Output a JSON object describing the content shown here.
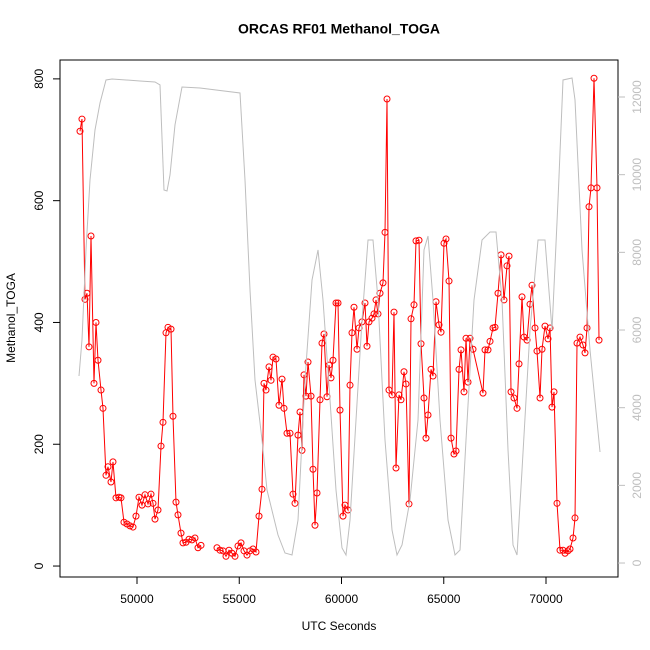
{
  "chart_data": {
    "type": "line",
    "title": "ORCAS RF01 Methanol_TOGA",
    "xlabel": "UTC Seconds",
    "ylabel": "Methanol_TOGA",
    "xlim": [
      46235,
      73520
    ],
    "xticks": [
      50000,
      55000,
      60000,
      65000,
      70000
    ],
    "ylim": [
      -18,
      831
    ],
    "yticks": [
      0,
      200,
      400,
      600,
      800
    ],
    "y2lim": [
      -360,
      12953
    ],
    "y2ticks": [
      0,
      2000,
      4000,
      6000,
      8000,
      10000,
      12000
    ],
    "series": [
      {
        "color": "#ff0000",
        "marker": "circle",
        "x": [
          47213,
          47310,
          47457,
          47555,
          47653,
          47751,
          47897,
          47995,
          48093,
          48240,
          48337,
          48484,
          48582,
          48729,
          48826,
          48973,
          49120,
          49218,
          49364,
          49511,
          49658,
          49804,
          49951,
          50098,
          50244,
          50391,
          50538,
          50685,
          50782,
          50880,
          51027,
          51174,
          51271,
          51418,
          51516,
          51663,
          51760,
          51907,
          52005,
          52152,
          52249,
          52396,
          52543,
          52689,
          52836,
          52983,
          53130,
          53500,
          53912,
          54059,
          54205,
          54352,
          54499,
          54645,
          54792,
          54939,
          55086,
          55232,
          55379,
          55526,
          55672,
          55819,
          55966,
          56112,
          56210,
          56308,
          56455,
          56553,
          56650,
          56797,
          56944,
          57091,
          57188,
          57335,
          57482,
          57628,
          57726,
          57873,
          57971,
          58068,
          58166,
          58264,
          58362,
          58509,
          58606,
          58704,
          58802,
          58949,
          59046,
          59144,
          59291,
          59389,
          59487,
          59584,
          59731,
          59829,
          59927,
          60073,
          60171,
          60318,
          60416,
          60513,
          60611,
          60758,
          60856,
          61002,
          61149,
          61247,
          61345,
          61491,
          61589,
          61687,
          61785,
          61883,
          62029,
          62127,
          62225,
          62323,
          62469,
          62567,
          62665,
          62812,
          62910,
          63056,
          63154,
          63301,
          63399,
          63545,
          63643,
          63790,
          63888,
          64034,
          64132,
          64230,
          64377,
          64474,
          64621,
          64768,
          64866,
          65012,
          65110,
          65257,
          65355,
          65501,
          65599,
          65746,
          65844,
          65990,
          66088,
          66186,
          66284,
          66430,
          66919,
          67017,
          67164,
          67262,
          67408,
          67506,
          67653,
          67800,
          67946,
          68093,
          68191,
          68289,
          68435,
          68582,
          68680,
          68826,
          68924,
          69071,
          69218,
          69315,
          69462,
          69560,
          69707,
          69804,
          69951,
          70098,
          70196,
          70293,
          70391,
          70538,
          70685,
          70831,
          70929,
          71076,
          71174,
          71320,
          71418,
          71516,
          71663,
          71809,
          71907,
          72005,
          72103,
          72200,
          72347,
          72494,
          72592
        ],
        "values": [
          714,
          734,
          438,
          448,
          360,
          542,
          300,
          400,
          338,
          289,
          259,
          149,
          163,
          138,
          171,
          112,
          113,
          112,
          72,
          69,
          66,
          64,
          82,
          113,
          100,
          117,
          102,
          118,
          103,
          77,
          92,
          197,
          236,
          383,
          392,
          389,
          246,
          105,
          84,
          54,
          38,
          39,
          44,
          43,
          46,
          30,
          34,
          null,
          30,
          26,
          25,
          16,
          26,
          21,
          16,
          33,
          38,
          25,
          18,
          25,
          28,
          23,
          82,
          126,
          300,
          289,
          327,
          305,
          343,
          340,
          264,
          307,
          259,
          218,
          218,
          118,
          103,
          215,
          253,
          190,
          314,
          279,
          335,
          279,
          159,
          67,
          120,
          273,
          366,
          381,
          278,
          330,
          309,
          338,
          432,
          432,
          256,
          82,
          100,
          92,
          297,
          383,
          425,
          356,
          391,
          401,
          432,
          361,
          401,
          407,
          414,
          437,
          414,
          448,
          465,
          548,
          767,
          289,
          281,
          417,
          161,
          281,
          273,
          319,
          299,
          102,
          406,
          429,
          534,
          535,
          365,
          276,
          210,
          248,
          323,
          312,
          434,
          396,
          384,
          530,
          537,
          468,
          210,
          184,
          189,
          323,
          355,
          286,
          374,
          302,
          374,
          356,
          284,
          355,
          355,
          369,
          391,
          392,
          448,
          511,
          437,
          493,
          509,
          286,
          276,
          259,
          332,
          442,
          376,
          371,
          430,
          461,
          391,
          353,
          276,
          356,
          394,
          373,
          391,
          261,
          286,
          103,
          26,
          26,
          21,
          25,
          28,
          46,
          79,
          366,
          376,
          363,
          350,
          391,
          590,
          621,
          801,
          621,
          371
        ]
      },
      {
        "color": "#bebebe",
        "axis": "y2",
        "x": [
          47164,
          47310,
          47506,
          47702,
          47946,
          48191,
          48484,
          48778,
          50147,
          50880,
          51125,
          51320,
          51467,
          51614,
          51858,
          52200,
          53081,
          55037,
          55281,
          55526,
          55770,
          56113,
          56357,
          56895,
          57237,
          57580,
          57873,
          58215,
          58558,
          58851,
          59095,
          59438,
          59731,
          60025,
          60220,
          60416,
          60709,
          61003,
          61296,
          61540,
          61785,
          62127,
          62470,
          62714,
          62959,
          63350,
          63741,
          64034,
          64230,
          64474,
          64817,
          65208,
          65550,
          65795,
          66088,
          66479,
          66871,
          67262,
          67555,
          67849,
          68142,
          68386,
          68582,
          68827,
          69218,
          69609,
          69951,
          70294,
          70587,
          70831,
          71272,
          71418,
          71761,
          72152,
          72641
        ],
        "values": [
          4816,
          5743,
          8061,
          9863,
          11151,
          11846,
          12439,
          12464,
          12413,
          12387,
          12310,
          9606,
          9580,
          9992,
          11280,
          12258,
          12233,
          12104,
          9863,
          7031,
          4713,
          3168,
          1880,
          721,
          258,
          206,
          1107,
          4713,
          7288,
          8061,
          6773,
          4198,
          1880,
          386,
          206,
          1107,
          3683,
          6258,
          8318,
          8318,
          6773,
          3168,
          850,
          206,
          464,
          1622,
          3683,
          8061,
          8421,
          6773,
          3683,
          1107,
          206,
          335,
          3168,
          6773,
          8318,
          8524,
          8524,
          6773,
          2910,
          464,
          206,
          2395,
          6000,
          8318,
          8318,
          6000,
          9348,
          12439,
          12490,
          11924,
          8061,
          5485,
          2859
        ]
      }
    ]
  }
}
